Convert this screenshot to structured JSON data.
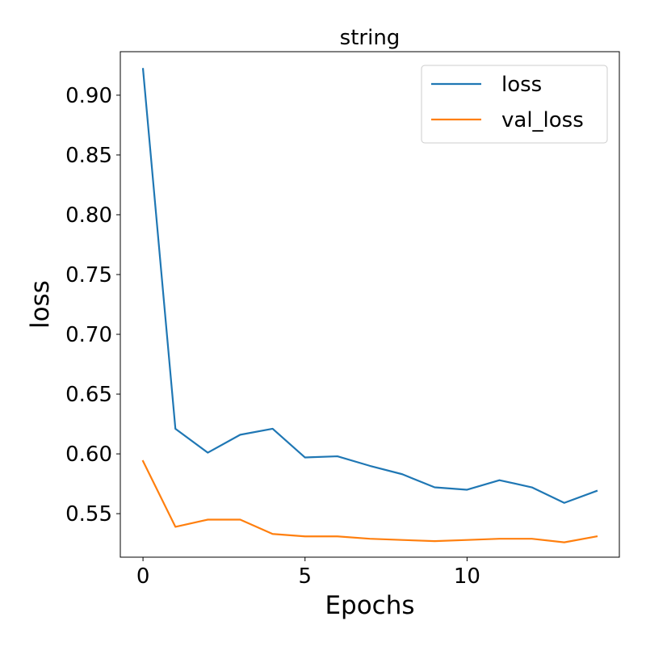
{
  "chart_data": {
    "type": "line",
    "title": "string",
    "xlabel": "Epochs",
    "ylabel": "loss",
    "xlim": [
      -0.7,
      14.7
    ],
    "ylim": [
      0.5136,
      0.9364
    ],
    "xticks": [
      0,
      5,
      10
    ],
    "xtick_labels": [
      "0",
      "5",
      "10"
    ],
    "yticks": [
      0.55,
      0.6,
      0.65,
      0.7,
      0.75,
      0.8,
      0.85,
      0.9
    ],
    "ytick_labels": [
      "0.55",
      "0.60",
      "0.65",
      "0.70",
      "0.75",
      "0.80",
      "0.85",
      "0.90"
    ],
    "grid": false,
    "legend_position": "top-right",
    "x": [
      0,
      1,
      2,
      3,
      4,
      5,
      6,
      7,
      8,
      9,
      10,
      11,
      12,
      13,
      14
    ],
    "series": [
      {
        "name": "loss",
        "color": "#1f77b4",
        "values": [
          0.922,
          0.621,
          0.601,
          0.616,
          0.621,
          0.597,
          0.598,
          0.59,
          0.583,
          0.572,
          0.57,
          0.578,
          0.572,
          0.559,
          0.569
        ]
      },
      {
        "name": "val_loss",
        "color": "#ff7f0e",
        "values": [
          0.594,
          0.539,
          0.545,
          0.545,
          0.533,
          0.531,
          0.531,
          0.529,
          0.528,
          0.527,
          0.528,
          0.529,
          0.529,
          0.526,
          0.531
        ]
      }
    ]
  }
}
